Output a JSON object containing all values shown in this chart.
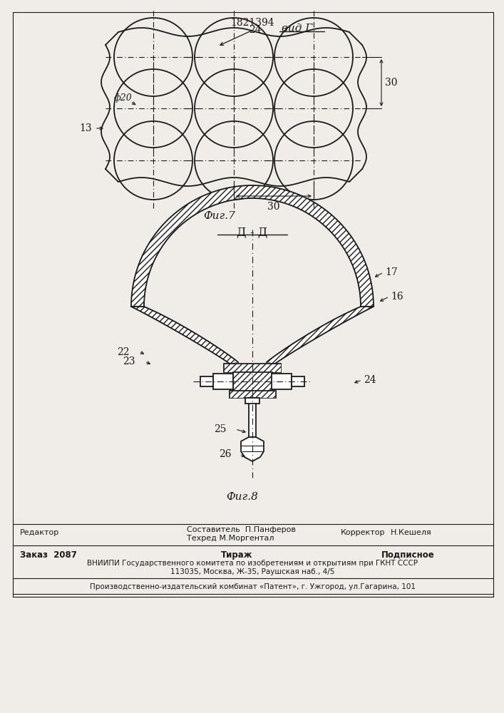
{
  "bg_color": "#f0ede8",
  "patent_number": "1821394",
  "fig7_label": "Фиг.7",
  "fig8_label": "Фиг.8",
  "vid_label": "вид Г",
  "dd_label": "Д - Д",
  "line_color": "#1a1a1a",
  "footer_line1_left": "Редактор",
  "footer_line1_center1": "Составитель  П.Панферов",
  "footer_line1_center2": "Техред М.Моргентал",
  "footer_line1_right1": "Корректор",
  "footer_line1_right2": "Н.Кешеля",
  "footer_line2_left": "Заказ  2087",
  "footer_line2_center": "Тираж",
  "footer_line2_right": "Подписное",
  "footer_line3": "ВНИИПИ Государственного комитета по изобретениям и открытиям при ГКНТ СССР",
  "footer_line4": "113035, Москва, Ж-35, Раушская наб., 4/5",
  "footer_line5": "Производственно-издательский комбинат «Патент», г. Ужгород, ул.Гагарина, 101"
}
